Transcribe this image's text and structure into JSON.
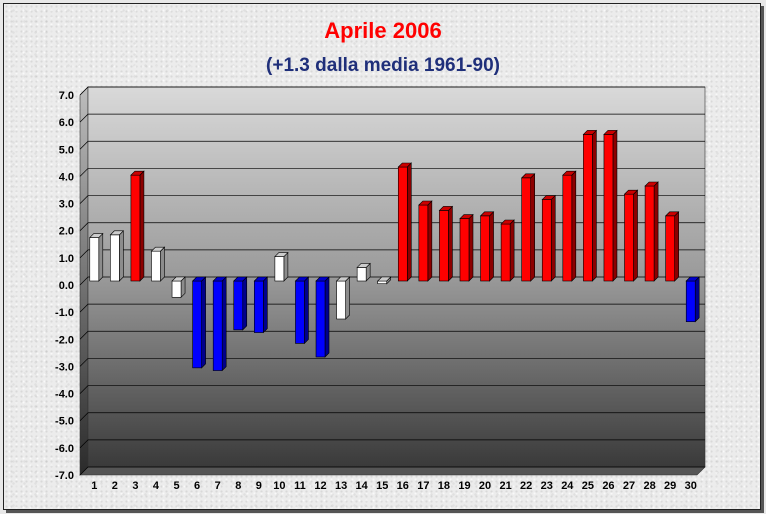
{
  "chart_data": {
    "type": "bar",
    "title": "Aprile 2006",
    "subtitle": "(+1.3 dalla media 1961-90)",
    "xlabel": "",
    "ylabel": "",
    "categories": [
      "1",
      "2",
      "3",
      "4",
      "5",
      "6",
      "7",
      "8",
      "9",
      "10",
      "11",
      "12",
      "13",
      "14",
      "15",
      "16",
      "17",
      "18",
      "19",
      "20",
      "21",
      "22",
      "23",
      "24",
      "25",
      "26",
      "27",
      "28",
      "29",
      "30"
    ],
    "values": [
      1.6,
      1.7,
      3.9,
      1.1,
      -0.6,
      -3.2,
      -3.3,
      -1.8,
      -1.9,
      0.9,
      -2.3,
      -2.8,
      -1.4,
      0.5,
      -0.1,
      4.2,
      2.8,
      2.6,
      2.3,
      2.4,
      2.1,
      3.8,
      3.0,
      3.9,
      5.4,
      5.4,
      3.2,
      3.5,
      2.4,
      -1.5
    ],
    "ylim": [
      -7,
      7
    ],
    "yticks": [
      "7.0",
      "6.0",
      "5.0",
      "4.0",
      "3.0",
      "2.0",
      "1.0",
      "0.0",
      "-1.0",
      "-2.0",
      "-3.0",
      "-4.0",
      "-5.0",
      "-6.0",
      "-7.0"
    ],
    "grid": true,
    "legend": "none",
    "colors": {
      "warm": "#ff0000",
      "cold": "#0000ff",
      "near_normal": "#ffffff",
      "title": "#ff0000",
      "subtitle": "#1f2f7a"
    }
  }
}
